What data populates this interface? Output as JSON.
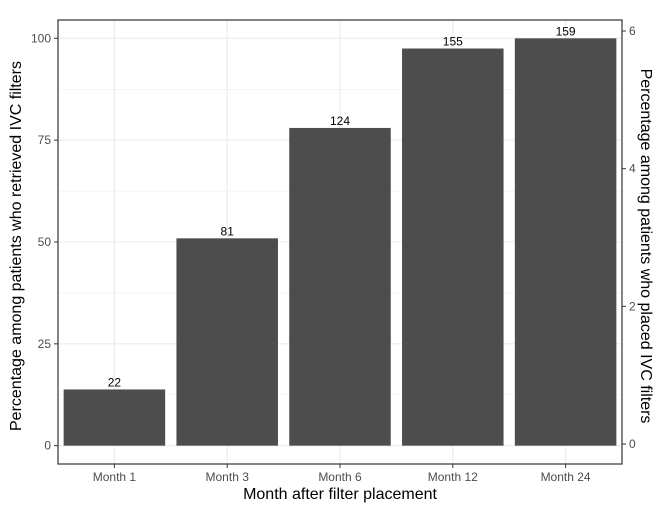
{
  "chart_data": {
    "type": "bar",
    "categories": [
      "Month 1",
      "Month 3",
      "Month 6",
      "Month 12",
      "Month 24"
    ],
    "values": [
      13.8,
      50.9,
      78.0,
      97.5,
      100.0
    ],
    "bar_labels": [
      "22",
      "81",
      "124",
      "155",
      "159"
    ],
    "xlabel": "Month after filter placement",
    "ylabel": "Percentage among patients who retrieved IVC filters",
    "ylabel_right": "Percentage among patients who placed IVC filters",
    "ylim": [
      -4.5,
      104.5
    ],
    "yticks": [
      0,
      25,
      50,
      75,
      100
    ],
    "ylim_right": [
      -0.29,
      6.16
    ],
    "yticks_right": [
      0,
      2,
      4,
      6
    ],
    "colors": {
      "bar": "#4d4d4d",
      "grid": "#ebebeb",
      "panel_border": "#333333"
    },
    "grid": true
  }
}
